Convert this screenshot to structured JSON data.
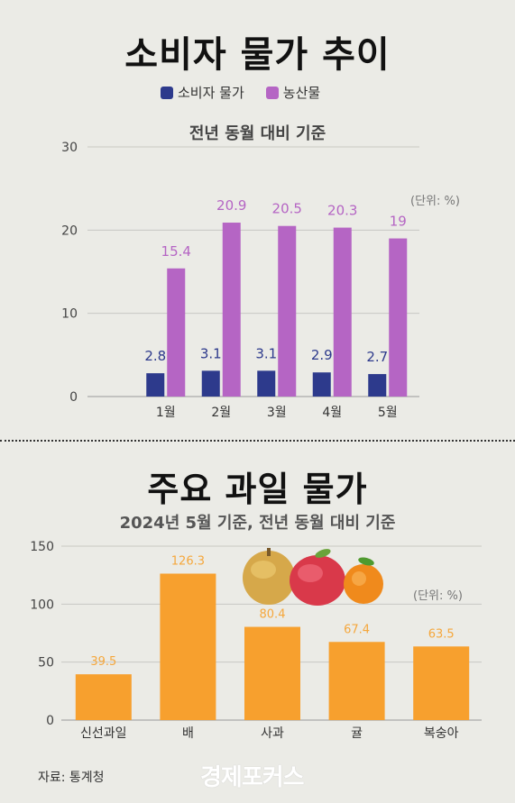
{
  "header": {
    "title": "소비자 물가 추이",
    "legend": [
      {
        "label": "소비자 물가",
        "color": "#2d3a8c"
      },
      {
        "label": "농산물",
        "color": "#b565c4"
      }
    ],
    "subtitle": "전년 동월  대비 기준",
    "unit": "(단위: %)"
  },
  "fruits": {
    "title": "주요 과일 물가",
    "subtitle": "2024년 5월 기준, 전년 동월  대비 기준",
    "unit": "(단위: %)"
  },
  "footer": {
    "source": "자료: 통계청",
    "brand": "경제포커스"
  },
  "chart_data": [
    {
      "type": "bar",
      "categories": [
        "1월",
        "2월",
        "3월",
        "4월",
        "5월"
      ],
      "series": [
        {
          "name": "소비자 물가",
          "values": [
            2.8,
            3.1,
            3.1,
            2.9,
            2.7
          ],
          "labels": [
            "2.8",
            "3.1",
            "3.1",
            "2.9",
            "2.7"
          ],
          "color": "#2d3a8c"
        },
        {
          "name": "농산물",
          "values": [
            15.4,
            20.9,
            20.5,
            20.3,
            19
          ],
          "labels": [
            "15.4",
            "20.9",
            "20.5",
            "20.3",
            "19"
          ],
          "color": "#b565c4"
        }
      ],
      "yticks": [
        "0",
        "10",
        "20",
        "30"
      ],
      "ylim": [
        0,
        30
      ],
      "grid": true
    },
    {
      "type": "bar",
      "categories": [
        "신선과일",
        "배",
        "사과",
        "귤",
        "복숭아"
      ],
      "values": [
        39.5,
        126.3,
        80.4,
        67.4,
        63.5
      ],
      "labels": [
        "39.5",
        "126.3",
        "80.4",
        "67.4",
        "63.5"
      ],
      "color": "#f7a02e",
      "label_color": "#f5a73c",
      "yticks": [
        "0",
        "50",
        "100",
        "150"
      ],
      "ylim": [
        0,
        150
      ],
      "grid": true
    }
  ]
}
